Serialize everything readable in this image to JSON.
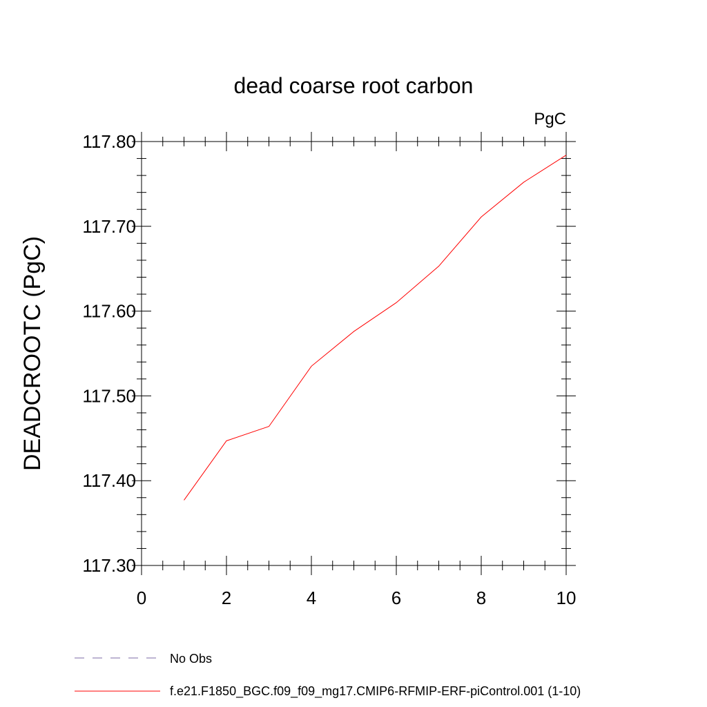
{
  "chart_data": {
    "type": "line",
    "title": "dead coarse root carbon",
    "units_label": "PgC",
    "ylabel": "DEADCROOTC  (PgC)",
    "xlabel": "",
    "xlim": [
      0,
      10
    ],
    "ylim": [
      117.3,
      117.8
    ],
    "x_ticks": [
      0,
      2,
      4,
      6,
      8,
      10
    ],
    "x_tick_labels": [
      "0",
      "2",
      "4",
      "6",
      "8",
      "10"
    ],
    "y_ticks": [
      117.3,
      117.4,
      117.5,
      117.6,
      117.7,
      117.8
    ],
    "y_tick_labels": [
      "117.30",
      "117.40",
      "117.50",
      "117.60",
      "117.70",
      "117.80"
    ],
    "grid": false,
    "legend_position": "bottom-left",
    "series": [
      {
        "name": "f.e21.F1850_BGC.f09_f09_mg17.CMIP6-RFMIP-ERF-piControl.001 (1-10)",
        "color": "#ff0000",
        "style": "solid",
        "x": [
          1,
          2,
          3,
          4,
          5,
          6,
          7,
          8,
          9,
          10
        ],
        "y": [
          117.377,
          117.447,
          117.464,
          117.535,
          117.576,
          117.61,
          117.653,
          117.711,
          117.752,
          117.784
        ]
      }
    ],
    "legend": [
      {
        "label": "No Obs",
        "color": "#7b68a6",
        "style": "dashed"
      },
      {
        "label": "f.e21.F1850_BGC.f09_f09_mg17.CMIP6-RFMIP-ERF-piControl.001 (1-10)",
        "color": "#ff0000",
        "style": "solid"
      }
    ]
  }
}
